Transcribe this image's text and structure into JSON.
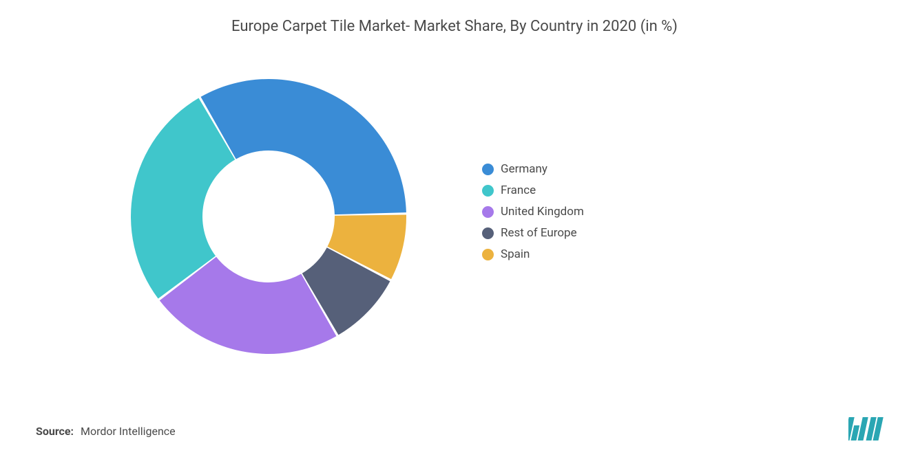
{
  "title": "Europe Carpet Tile Market- Market Share, By Country in 2020 (in %)",
  "source_label": "Source:",
  "source_value": "Mordor Intelligence",
  "chart": {
    "type": "donut",
    "background_color": "#ffffff",
    "start_angle_deg": -30,
    "inner_radius_pct": 48,
    "outer_radius_pct": 100,
    "gap_deg": 1.0,
    "title_fontsize": 22,
    "title_color": "#4a4a4a",
    "legend_fontsize": 17,
    "legend_color": "#4a4a4a",
    "legend_position": "right",
    "slices": [
      {
        "label": "Germany",
        "value": 33,
        "color": "#3a8cd6"
      },
      {
        "label": "Spain",
        "value": 8,
        "color": "#ecb23e"
      },
      {
        "label": "Rest of Europe",
        "value": 9,
        "color": "#566079"
      },
      {
        "label": "United Kingdom",
        "value": 23,
        "color": "#a679ea"
      },
      {
        "label": "France",
        "value": 27,
        "color": "#40c6cb"
      }
    ],
    "legend_order": [
      "Germany",
      "France",
      "United Kingdom",
      "Rest of Europe",
      "Spain"
    ]
  },
  "logo": {
    "bar_color": "#2aa6b3",
    "bg_color": "#ffffff"
  }
}
